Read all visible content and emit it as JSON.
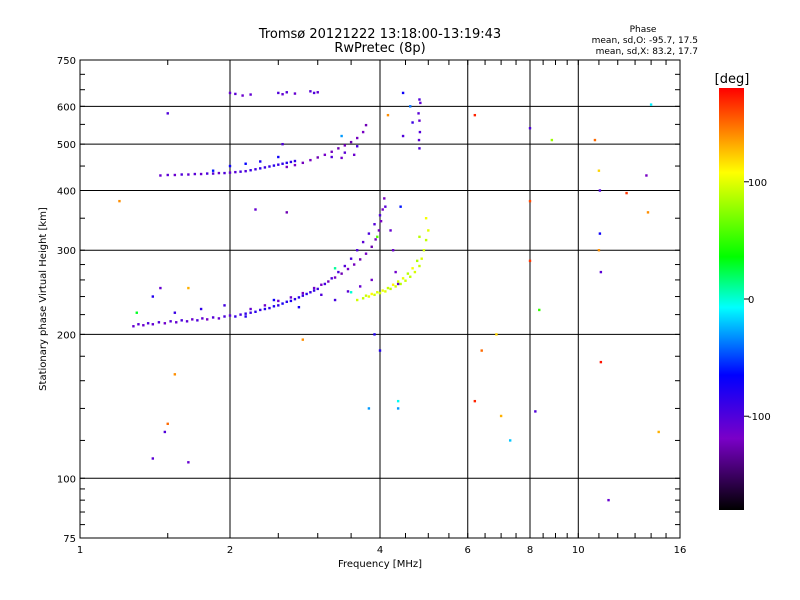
{
  "chart_data": {
    "type": "scatter",
    "title": "Tromsø 20121222 13:18:00-13:19:43",
    "subtitle": "RwPretec (8p)",
    "phase_header": "Phase",
    "phase_stats": [
      "mean, sd,O: -95.7, 17.5",
      "mean, sd,X:  83.2, 17.7"
    ],
    "xlabel": "Frequency [MHz]",
    "ylabel": "Stationary phase Virtual Height [km]",
    "xscale": "log",
    "yscale": "log",
    "xlim": [
      1,
      16
    ],
    "ylim": [
      75,
      750
    ],
    "grid": true,
    "x_ticks": [
      {
        "value": 1,
        "label": "1"
      },
      {
        "value": 2,
        "label": "2"
      },
      {
        "value": 4,
        "label": "4"
      },
      {
        "value": 6,
        "label": "6"
      },
      {
        "value": 8,
        "label": "8"
      },
      {
        "value": 10,
        "label": "10"
      },
      {
        "value": 16,
        "label": "16"
      }
    ],
    "y_ticks": [
      {
        "value": 75,
        "label": "75"
      },
      {
        "value": 100,
        "label": "100"
      },
      {
        "value": 200,
        "label": "200"
      },
      {
        "value": 300,
        "label": "300"
      },
      {
        "value": 400,
        "label": "400"
      },
      {
        "value": 500,
        "label": "500"
      },
      {
        "value": 600,
        "label": "600"
      },
      {
        "value": 750,
        "label": "750"
      }
    ],
    "colorbar": {
      "label": "[deg]",
      "range": [
        -180,
        180
      ],
      "ticks": [
        {
          "value": 100,
          "label": "100"
        },
        {
          "value": 0,
          "label": "0"
        },
        {
          "value": -100,
          "label": "-100"
        }
      ]
    },
    "points": [
      [
        1.28,
        208,
        -110
      ],
      [
        1.31,
        210,
        -105
      ],
      [
        1.34,
        209,
        -112
      ],
      [
        1.37,
        211,
        -100
      ],
      [
        1.4,
        210,
        -108
      ],
      [
        1.44,
        212,
        -102
      ],
      [
        1.48,
        211,
        -115
      ],
      [
        1.52,
        213,
        -104
      ],
      [
        1.56,
        212,
        -110
      ],
      [
        1.6,
        214,
        -98
      ],
      [
        1.64,
        213,
        -106
      ],
      [
        1.68,
        215,
        -112
      ],
      [
        1.72,
        214,
        -100
      ],
      [
        1.76,
        216,
        -108
      ],
      [
        1.8,
        215,
        -118
      ],
      [
        1.85,
        217,
        -103
      ],
      [
        1.9,
        216,
        -110
      ],
      [
        1.95,
        218,
        -98
      ],
      [
        2.0,
        219,
        -105
      ],
      [
        2.05,
        218,
        -88
      ],
      [
        2.1,
        220,
        -95
      ],
      [
        2.15,
        221,
        -85
      ],
      [
        2.2,
        222,
        -92
      ],
      [
        2.25,
        223,
        -82
      ],
      [
        2.3,
        225,
        -90
      ],
      [
        2.35,
        226,
        -80
      ],
      [
        2.4,
        227,
        -88
      ],
      [
        2.45,
        229,
        -78
      ],
      [
        2.5,
        230,
        -85
      ],
      [
        2.55,
        232,
        -75
      ],
      [
        2.6,
        234,
        -82
      ],
      [
        2.65,
        235,
        -78
      ],
      [
        2.7,
        237,
        -85
      ],
      [
        2.75,
        239,
        -80
      ],
      [
        2.8,
        241,
        -88
      ],
      [
        2.85,
        243,
        -82
      ],
      [
        2.9,
        245,
        -90
      ],
      [
        2.95,
        247,
        -86
      ],
      [
        3.0,
        249,
        -92
      ],
      [
        2.2,
        226,
        -110
      ],
      [
        2.35,
        230,
        -115
      ],
      [
        2.5,
        235,
        -118
      ],
      [
        2.65,
        239,
        -112
      ],
      [
        2.8,
        244,
        -120
      ],
      [
        2.95,
        250,
        -115
      ],
      [
        3.05,
        254,
        -118
      ],
      [
        3.15,
        258,
        -122
      ],
      [
        3.25,
        263,
        -120
      ],
      [
        3.35,
        268,
        -125
      ],
      [
        3.45,
        274,
        -118
      ],
      [
        3.55,
        280,
        -122
      ],
      [
        3.65,
        287,
        -125
      ],
      [
        3.75,
        295,
        -120
      ],
      [
        3.85,
        305,
        -128
      ],
      [
        3.92,
        316,
        -122
      ],
      [
        3.98,
        330,
        -125
      ],
      [
        4.02,
        345,
        -120
      ],
      [
        4.05,
        365,
        -118
      ],
      [
        4.08,
        385,
        -122
      ],
      [
        3.1,
        255,
        -95
      ],
      [
        3.2,
        262,
        -100
      ],
      [
        3.3,
        270,
        -98
      ],
      [
        3.4,
        278,
        -102
      ],
      [
        3.5,
        288,
        -96
      ],
      [
        3.6,
        300,
        -100
      ],
      [
        3.7,
        312,
        -105
      ],
      [
        3.8,
        325,
        -98
      ],
      [
        3.9,
        340,
        -102
      ],
      [
        4.0,
        355,
        -100
      ],
      [
        4.1,
        370,
        -104
      ],
      [
        4.2,
        330,
        -110
      ],
      [
        4.25,
        300,
        -112
      ],
      [
        4.3,
        270,
        -115
      ],
      [
        4.35,
        255,
        -108
      ],
      [
        1.55,
        222,
        -90
      ],
      [
        1.75,
        226,
        -85
      ],
      [
        1.95,
        230,
        -95
      ],
      [
        2.15,
        218,
        -80
      ],
      [
        2.45,
        236,
        -70
      ],
      [
        2.75,
        228,
        -75
      ],
      [
        3.05,
        242,
        -100
      ],
      [
        3.25,
        236,
        -95
      ],
      [
        3.45,
        246,
        -105
      ],
      [
        3.65,
        252,
        -110
      ],
      [
        3.85,
        260,
        -115
      ],
      [
        3.6,
        236,
        95
      ],
      [
        3.7,
        238,
        90
      ],
      [
        3.8,
        240,
        100
      ],
      [
        3.9,
        242,
        95
      ],
      [
        4.0,
        244,
        92
      ],
      [
        4.1,
        246,
        98
      ],
      [
        4.2,
        249,
        90
      ],
      [
        4.3,
        252,
        96
      ],
      [
        4.4,
        255,
        88
      ],
      [
        4.5,
        259,
        94
      ],
      [
        4.6,
        264,
        90
      ],
      [
        4.7,
        270,
        96
      ],
      [
        4.8,
        278,
        92
      ],
      [
        4.85,
        288,
        98
      ],
      [
        4.9,
        300,
        95
      ],
      [
        4.95,
        315,
        90
      ],
      [
        5.0,
        330,
        100
      ],
      [
        4.75,
        285,
        85
      ],
      [
        4.65,
        275,
        105
      ],
      [
        4.55,
        268,
        88
      ],
      [
        4.45,
        262,
        102
      ],
      [
        4.35,
        258,
        96
      ],
      [
        4.25,
        254,
        110
      ],
      [
        4.15,
        250,
        92
      ],
      [
        4.05,
        247,
        104
      ],
      [
        3.95,
        245,
        98
      ],
      [
        3.85,
        243,
        108
      ],
      [
        3.75,
        241,
        94
      ],
      [
        4.95,
        350,
        105
      ],
      [
        4.8,
        320,
        88
      ],
      [
        1.45,
        430,
        -110
      ],
      [
        1.5,
        431,
        -105
      ],
      [
        1.55,
        431,
        -112
      ],
      [
        1.6,
        432,
        -100
      ],
      [
        1.65,
        432,
        -108
      ],
      [
        1.7,
        433,
        -104
      ],
      [
        1.75,
        433,
        -110
      ],
      [
        1.8,
        434,
        -98
      ],
      [
        1.85,
        434,
        -106
      ],
      [
        1.9,
        435,
        -112
      ],
      [
        1.95,
        435,
        -100
      ],
      [
        2.0,
        436,
        -108
      ],
      [
        2.05,
        437,
        -104
      ],
      [
        2.1,
        438,
        -95
      ],
      [
        2.15,
        439,
        -100
      ],
      [
        2.2,
        441,
        -90
      ],
      [
        2.25,
        443,
        -95
      ],
      [
        2.3,
        445,
        -85
      ],
      [
        2.35,
        447,
        -92
      ],
      [
        2.4,
        449,
        -88
      ],
      [
        2.45,
        451,
        -82
      ],
      [
        2.5,
        453,
        -90
      ],
      [
        2.55,
        455,
        -85
      ],
      [
        2.6,
        457,
        -80
      ],
      [
        2.65,
        459,
        -86
      ],
      [
        2.7,
        461,
        -84
      ],
      [
        2.6,
        448,
        -120
      ],
      [
        2.7,
        452,
        -118
      ],
      [
        2.8,
        457,
        -122
      ],
      [
        2.9,
        463,
        -120
      ],
      [
        3.0,
        469,
        -125
      ],
      [
        3.1,
        475,
        -118
      ],
      [
        3.2,
        482,
        -122
      ],
      [
        3.3,
        490,
        -125
      ],
      [
        3.4,
        497,
        -120
      ],
      [
        3.5,
        505,
        -126
      ],
      [
        3.6,
        515,
        -122
      ],
      [
        3.7,
        530,
        -120
      ],
      [
        3.75,
        548,
        -124
      ],
      [
        3.2,
        470,
        -100
      ],
      [
        3.4,
        480,
        -105
      ],
      [
        3.6,
        495,
        -98
      ],
      [
        3.55,
        475,
        -112
      ],
      [
        3.35,
        468,
        -115
      ],
      [
        1.85,
        440,
        -60
      ],
      [
        2.0,
        450,
        -70
      ],
      [
        2.15,
        455,
        -65
      ],
      [
        2.3,
        460,
        -75
      ],
      [
        2.5,
        470,
        -70
      ],
      [
        2.0,
        640,
        -110
      ],
      [
        2.05,
        637,
        -105
      ],
      [
        2.12,
        632,
        -112
      ],
      [
        2.2,
        635,
        -108
      ],
      [
        2.5,
        640,
        -100
      ],
      [
        2.55,
        636,
        -108
      ],
      [
        2.6,
        642,
        -102
      ],
      [
        2.7,
        638,
        -110
      ],
      [
        2.9,
        645,
        -104
      ],
      [
        2.95,
        640,
        -100
      ],
      [
        3.0,
        642,
        -108
      ],
      [
        4.8,
        620,
        -100
      ],
      [
        4.82,
        610,
        -108
      ],
      [
        4.78,
        580,
        -104
      ],
      [
        4.8,
        560,
        -110
      ],
      [
        4.81,
        530,
        -102
      ],
      [
        4.79,
        510,
        -106
      ],
      [
        4.8,
        490,
        -100
      ],
      [
        4.45,
        640,
        -70
      ],
      [
        4.6,
        600,
        -40
      ],
      [
        4.65,
        555,
        -90
      ],
      [
        4.45,
        520,
        -100
      ],
      [
        1.5,
        580,
        -100
      ],
      [
        2.6,
        360,
        -125
      ],
      [
        2.25,
        365,
        -110
      ],
      [
        2.55,
        500,
        -100
      ],
      [
        3.35,
        520,
        -30
      ],
      [
        1.45,
        250,
        -110
      ],
      [
        1.4,
        240,
        -80
      ],
      [
        1.3,
        222,
        30
      ],
      [
        1.2,
        380,
        140
      ],
      [
        1.65,
        250,
        130
      ],
      [
        1.55,
        165,
        140
      ],
      [
        1.5,
        130,
        150
      ],
      [
        1.48,
        125,
        -100
      ],
      [
        1.4,
        110,
        -105
      ],
      [
        1.65,
        108,
        -110
      ],
      [
        2.8,
        195,
        140
      ],
      [
        3.9,
        200,
        -80
      ],
      [
        4.0,
        185,
        -80
      ],
      [
        3.8,
        140,
        -30
      ],
      [
        4.35,
        145,
        -5
      ],
      [
        4.35,
        140,
        -30
      ],
      [
        4.15,
        575,
        140
      ],
      [
        4.4,
        370,
        -60
      ],
      [
        3.25,
        275,
        10
      ],
      [
        3.95,
        320,
        60
      ],
      [
        3.5,
        245,
        0
      ],
      [
        6.2,
        575,
        170
      ],
      [
        6.2,
        145,
        170
      ],
      [
        6.4,
        185,
        150
      ],
      [
        6.85,
        200,
        120
      ],
      [
        7.0,
        135,
        130
      ],
      [
        7.3,
        120,
        -20
      ],
      [
        8.0,
        540,
        -100
      ],
      [
        8.0,
        380,
        160
      ],
      [
        8.0,
        285,
        165
      ],
      [
        8.2,
        138,
        -100
      ],
      [
        8.35,
        225,
        50
      ],
      [
        8.85,
        510,
        80
      ],
      [
        10.8,
        510,
        150
      ],
      [
        11.05,
        400,
        -100
      ],
      [
        11.05,
        325,
        -70
      ],
      [
        11.1,
        270,
        -105
      ],
      [
        11.0,
        300,
        140
      ],
      [
        11.1,
        175,
        175
      ],
      [
        11.0,
        440,
        120
      ],
      [
        11.5,
        90,
        -110
      ],
      [
        12.5,
        395,
        165
      ],
      [
        13.7,
        430,
        -120
      ],
      [
        13.8,
        360,
        140
      ],
      [
        14.5,
        125,
        130
      ],
      [
        14.0,
        605,
        -10
      ]
    ]
  }
}
